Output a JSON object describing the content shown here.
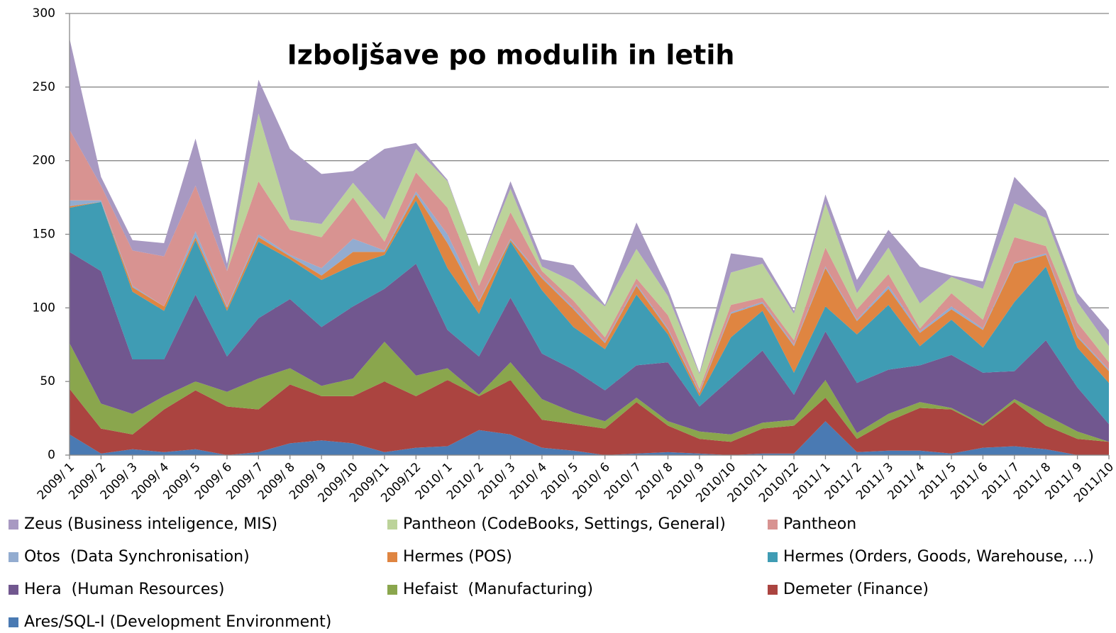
{
  "chart_data": {
    "type": "stacked_area",
    "title": "Izboljšave po modulih in letih",
    "categories": [
      "2009/ 1",
      "2009/ 2",
      "2009/ 3",
      "2009/ 4",
      "2009/ 5",
      "2009/ 6",
      "2009/ 7",
      "2009/ 8",
      "2009/ 9",
      "2009/10",
      "2009/11",
      "2009/12",
      "2010/ 1",
      "2010/ 2",
      "2010/ 3",
      "2010/ 4",
      "2010/ 5",
      "2010/ 6",
      "2010/ 7",
      "2010/ 8",
      "2010/ 9",
      "2010/10",
      "2010/11",
      "2010/12",
      "2011/ 1",
      "2011/ 2",
      "2011/ 3",
      "2011/ 4",
      "2011/ 5",
      "2011/ 6",
      "2011/ 7",
      "2011/ 8",
      "2011/ 9",
      "2011/10"
    ],
    "ylim": [
      0,
      300
    ],
    "yticks": [
      0,
      50,
      100,
      150,
      200,
      250,
      300
    ],
    "grid": true,
    "series": [
      {
        "name": "Ares/SQL-I (Development Environment)",
        "color": "#4a7ab3",
        "values": [
          14,
          1,
          4,
          2,
          4,
          0,
          2,
          8,
          10,
          8,
          2,
          5,
          6,
          17,
          14,
          5,
          3,
          0,
          1,
          2,
          1,
          0,
          1,
          1,
          23,
          2,
          3,
          3,
          1,
          5,
          6,
          4,
          0,
          0
        ]
      },
      {
        "name": "Demeter (Finance)",
        "color": "#ab4440",
        "values": [
          31,
          17,
          10,
          29,
          40,
          33,
          29,
          40,
          30,
          32,
          48,
          35,
          45,
          23,
          37,
          19,
          18,
          18,
          35,
          18,
          10,
          9,
          17,
          19,
          16,
          9,
          20,
          29,
          30,
          15,
          30,
          16,
          11,
          9
        ]
      },
      {
        "name": "Hefaist  (Manufacturing)",
        "color": "#8aa64d",
        "values": [
          31,
          17,
          14,
          9,
          6,
          10,
          21,
          11,
          7,
          12,
          27,
          14,
          8,
          1,
          12,
          14,
          8,
          5,
          3,
          3,
          5,
          5,
          4,
          4,
          12,
          4,
          5,
          4,
          1,
          1,
          2,
          7,
          5,
          0
        ]
      },
      {
        "name": "Hera  (Human Resources)",
        "color": "#71578f",
        "values": [
          62,
          90,
          37,
          25,
          59,
          24,
          41,
          47,
          40,
          49,
          36,
          76,
          26,
          26,
          44,
          31,
          29,
          21,
          22,
          40,
          17,
          38,
          49,
          17,
          33,
          34,
          30,
          25,
          36,
          35,
          19,
          51,
          30,
          12
        ]
      },
      {
        "name": "Hermes (Orders, Goods, Warehouse, ...)",
        "color": "#3f9cb4",
        "values": [
          30,
          47,
          46,
          33,
          37,
          31,
          52,
          27,
          32,
          28,
          23,
          43,
          42,
          29,
          38,
          43,
          29,
          28,
          48,
          19,
          7,
          28,
          27,
          15,
          17,
          33,
          44,
          13,
          24,
          17,
          47,
          50,
          27,
          28
        ]
      },
      {
        "name": "Hermes (POS)",
        "color": "#df8541",
        "values": [
          1,
          0,
          3,
          3,
          2,
          2,
          3,
          2,
          3,
          9,
          2,
          4,
          17,
          8,
          1,
          8,
          12,
          4,
          6,
          3,
          2,
          16,
          5,
          18,
          26,
          9,
          11,
          9,
          7,
          12,
          26,
          8,
          7,
          8
        ]
      },
      {
        "name": "Otos  (Data Synchronisation)",
        "color": "#93acd0",
        "values": [
          4,
          1,
          1,
          0,
          4,
          1,
          2,
          1,
          5,
          9,
          1,
          2,
          6,
          1,
          1,
          1,
          1,
          1,
          1,
          1,
          1,
          1,
          1,
          1,
          1,
          1,
          2,
          1,
          2,
          1,
          1,
          1,
          1,
          1
        ]
      },
      {
        "name": "Pantheon",
        "color": "#d89391",
        "values": [
          48,
          10,
          24,
          34,
          31,
          24,
          36,
          17,
          21,
          28,
          6,
          13,
          18,
          10,
          18,
          4,
          5,
          3,
          4,
          9,
          2,
          5,
          3,
          3,
          13,
          7,
          8,
          2,
          9,
          6,
          17,
          5,
          9,
          5
        ]
      },
      {
        "name": "Pantheon (CodeBooks, Settings, General)",
        "color": "#bcd39a",
        "values": [
          0,
          0,
          0,
          0,
          0,
          0,
          46,
          7,
          9,
          10,
          15,
          16,
          18,
          13,
          16,
          3,
          13,
          21,
          20,
          13,
          10,
          22,
          23,
          18,
          30,
          11,
          18,
          17,
          11,
          21,
          23,
          19,
          14,
          11
        ]
      },
      {
        "name": "Zeus (Business inteligence, MIS)",
        "color": "#a899c2",
        "values": [
          62,
          6,
          7,
          9,
          32,
          5,
          23,
          48,
          34,
          8,
          48,
          4,
          1,
          0,
          5,
          5,
          11,
          1,
          18,
          5,
          1,
          13,
          4,
          2,
          6,
          9,
          12,
          25,
          1,
          5,
          18,
          5,
          6,
          11
        ]
      }
    ]
  }
}
